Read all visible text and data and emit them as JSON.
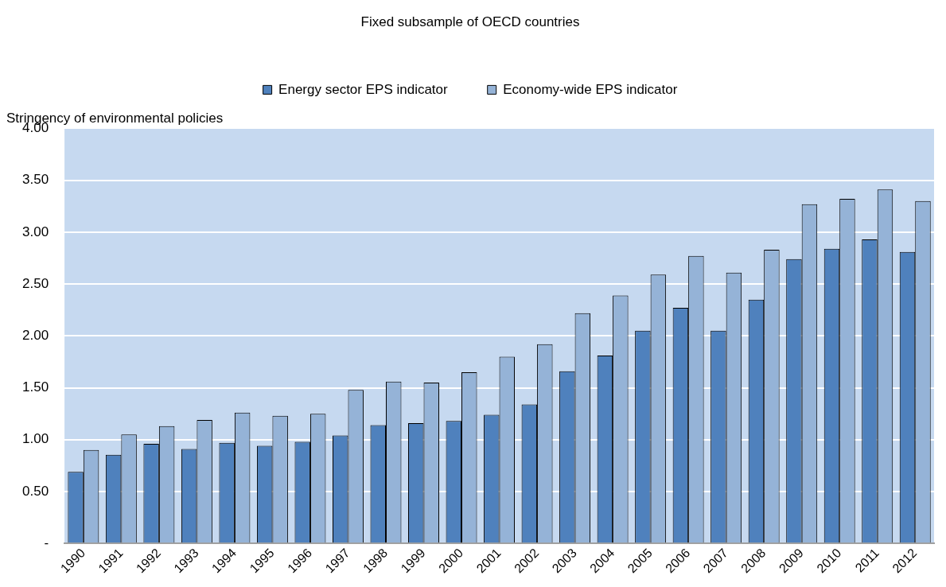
{
  "chart_data": {
    "type": "bar",
    "title": "Fixed subsample of OECD countries",
    "ylabel": "Stringency of environmental policies",
    "categories": [
      "1990",
      "1991",
      "1992",
      "1993",
      "1994",
      "1995",
      "1996",
      "1997",
      "1998",
      "1999",
      "2000",
      "2001",
      "2002",
      "2003",
      "2004",
      "2005",
      "2006",
      "2007",
      "2008",
      "2009",
      "2010",
      "2011",
      "2012"
    ],
    "series": [
      {
        "name": "Energy sector EPS indicator",
        "color": "#4f81bd",
        "values": [
          0.69,
          0.855,
          0.96,
          0.91,
          0.97,
          0.94,
          0.98,
          1.04,
          1.14,
          1.16,
          1.18,
          1.24,
          1.34,
          1.66,
          1.81,
          2.05,
          2.27,
          2.05,
          2.35,
          2.74,
          2.84,
          2.93,
          2.81
        ]
      },
      {
        "name": "Economy-wide EPS indicator",
        "color": "#95b3d7",
        "values": [
          0.9,
          1.05,
          1.13,
          1.19,
          1.26,
          1.23,
          1.25,
          1.48,
          1.56,
          1.55,
          1.65,
          1.8,
          1.92,
          2.22,
          2.39,
          2.59,
          2.77,
          2.61,
          2.83,
          3.27,
          3.32,
          3.41,
          3.3
        ]
      }
    ],
    "ylim": [
      0,
      4
    ],
    "yticks": [
      {
        "value": 0,
        "label": "-"
      },
      {
        "value": 0.5,
        "label": "0.50"
      },
      {
        "value": 1,
        "label": "1.00"
      },
      {
        "value": 1.5,
        "label": "1.50"
      },
      {
        "value": 2,
        "label": "2.00"
      },
      {
        "value": 2.5,
        "label": "2.50"
      },
      {
        "value": 3,
        "label": "3.00"
      },
      {
        "value": 3.5,
        "label": "3.50"
      },
      {
        "value": 4,
        "label": "4.00"
      }
    ],
    "grid": "y",
    "legend": "top"
  }
}
